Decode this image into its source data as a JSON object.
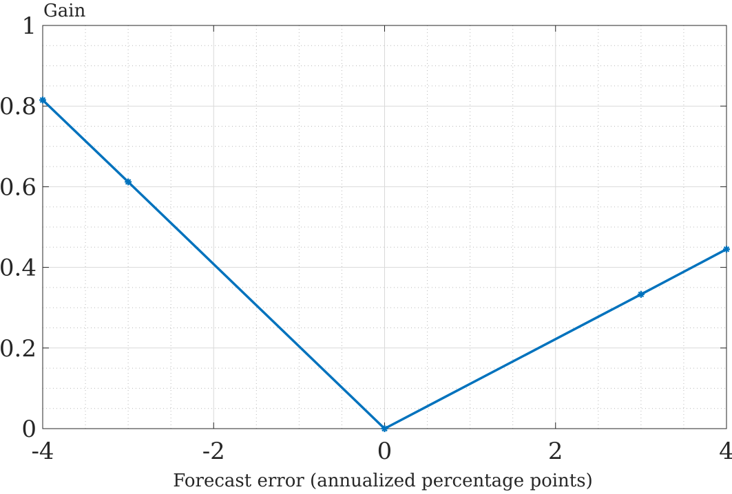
{
  "chart_data": {
    "type": "line",
    "xlabel": "Forecast error (annualized percentage points)",
    "ylabel": "Gain",
    "xlim": [
      -4,
      4
    ],
    "ylim": [
      0,
      1
    ],
    "xticks": [
      -4,
      -2,
      0,
      2,
      4
    ],
    "yticks": [
      0,
      0.2,
      0.4,
      0.6,
      0.8,
      1
    ],
    "xtick_labels": [
      "-4",
      "-2",
      "0",
      "2",
      "4"
    ],
    "ytick_labels": [
      "0",
      "0.2",
      "0.4",
      "0.6",
      "0.8",
      "1"
    ],
    "grid": "major and minor (dotted)",
    "series": [
      {
        "x": [
          -4,
          -3,
          0,
          3,
          4
        ],
        "y": [
          0.815,
          0.612,
          0.0,
          0.333,
          0.445
        ],
        "color": "#0072BD",
        "marker": "asterisk"
      }
    ]
  }
}
